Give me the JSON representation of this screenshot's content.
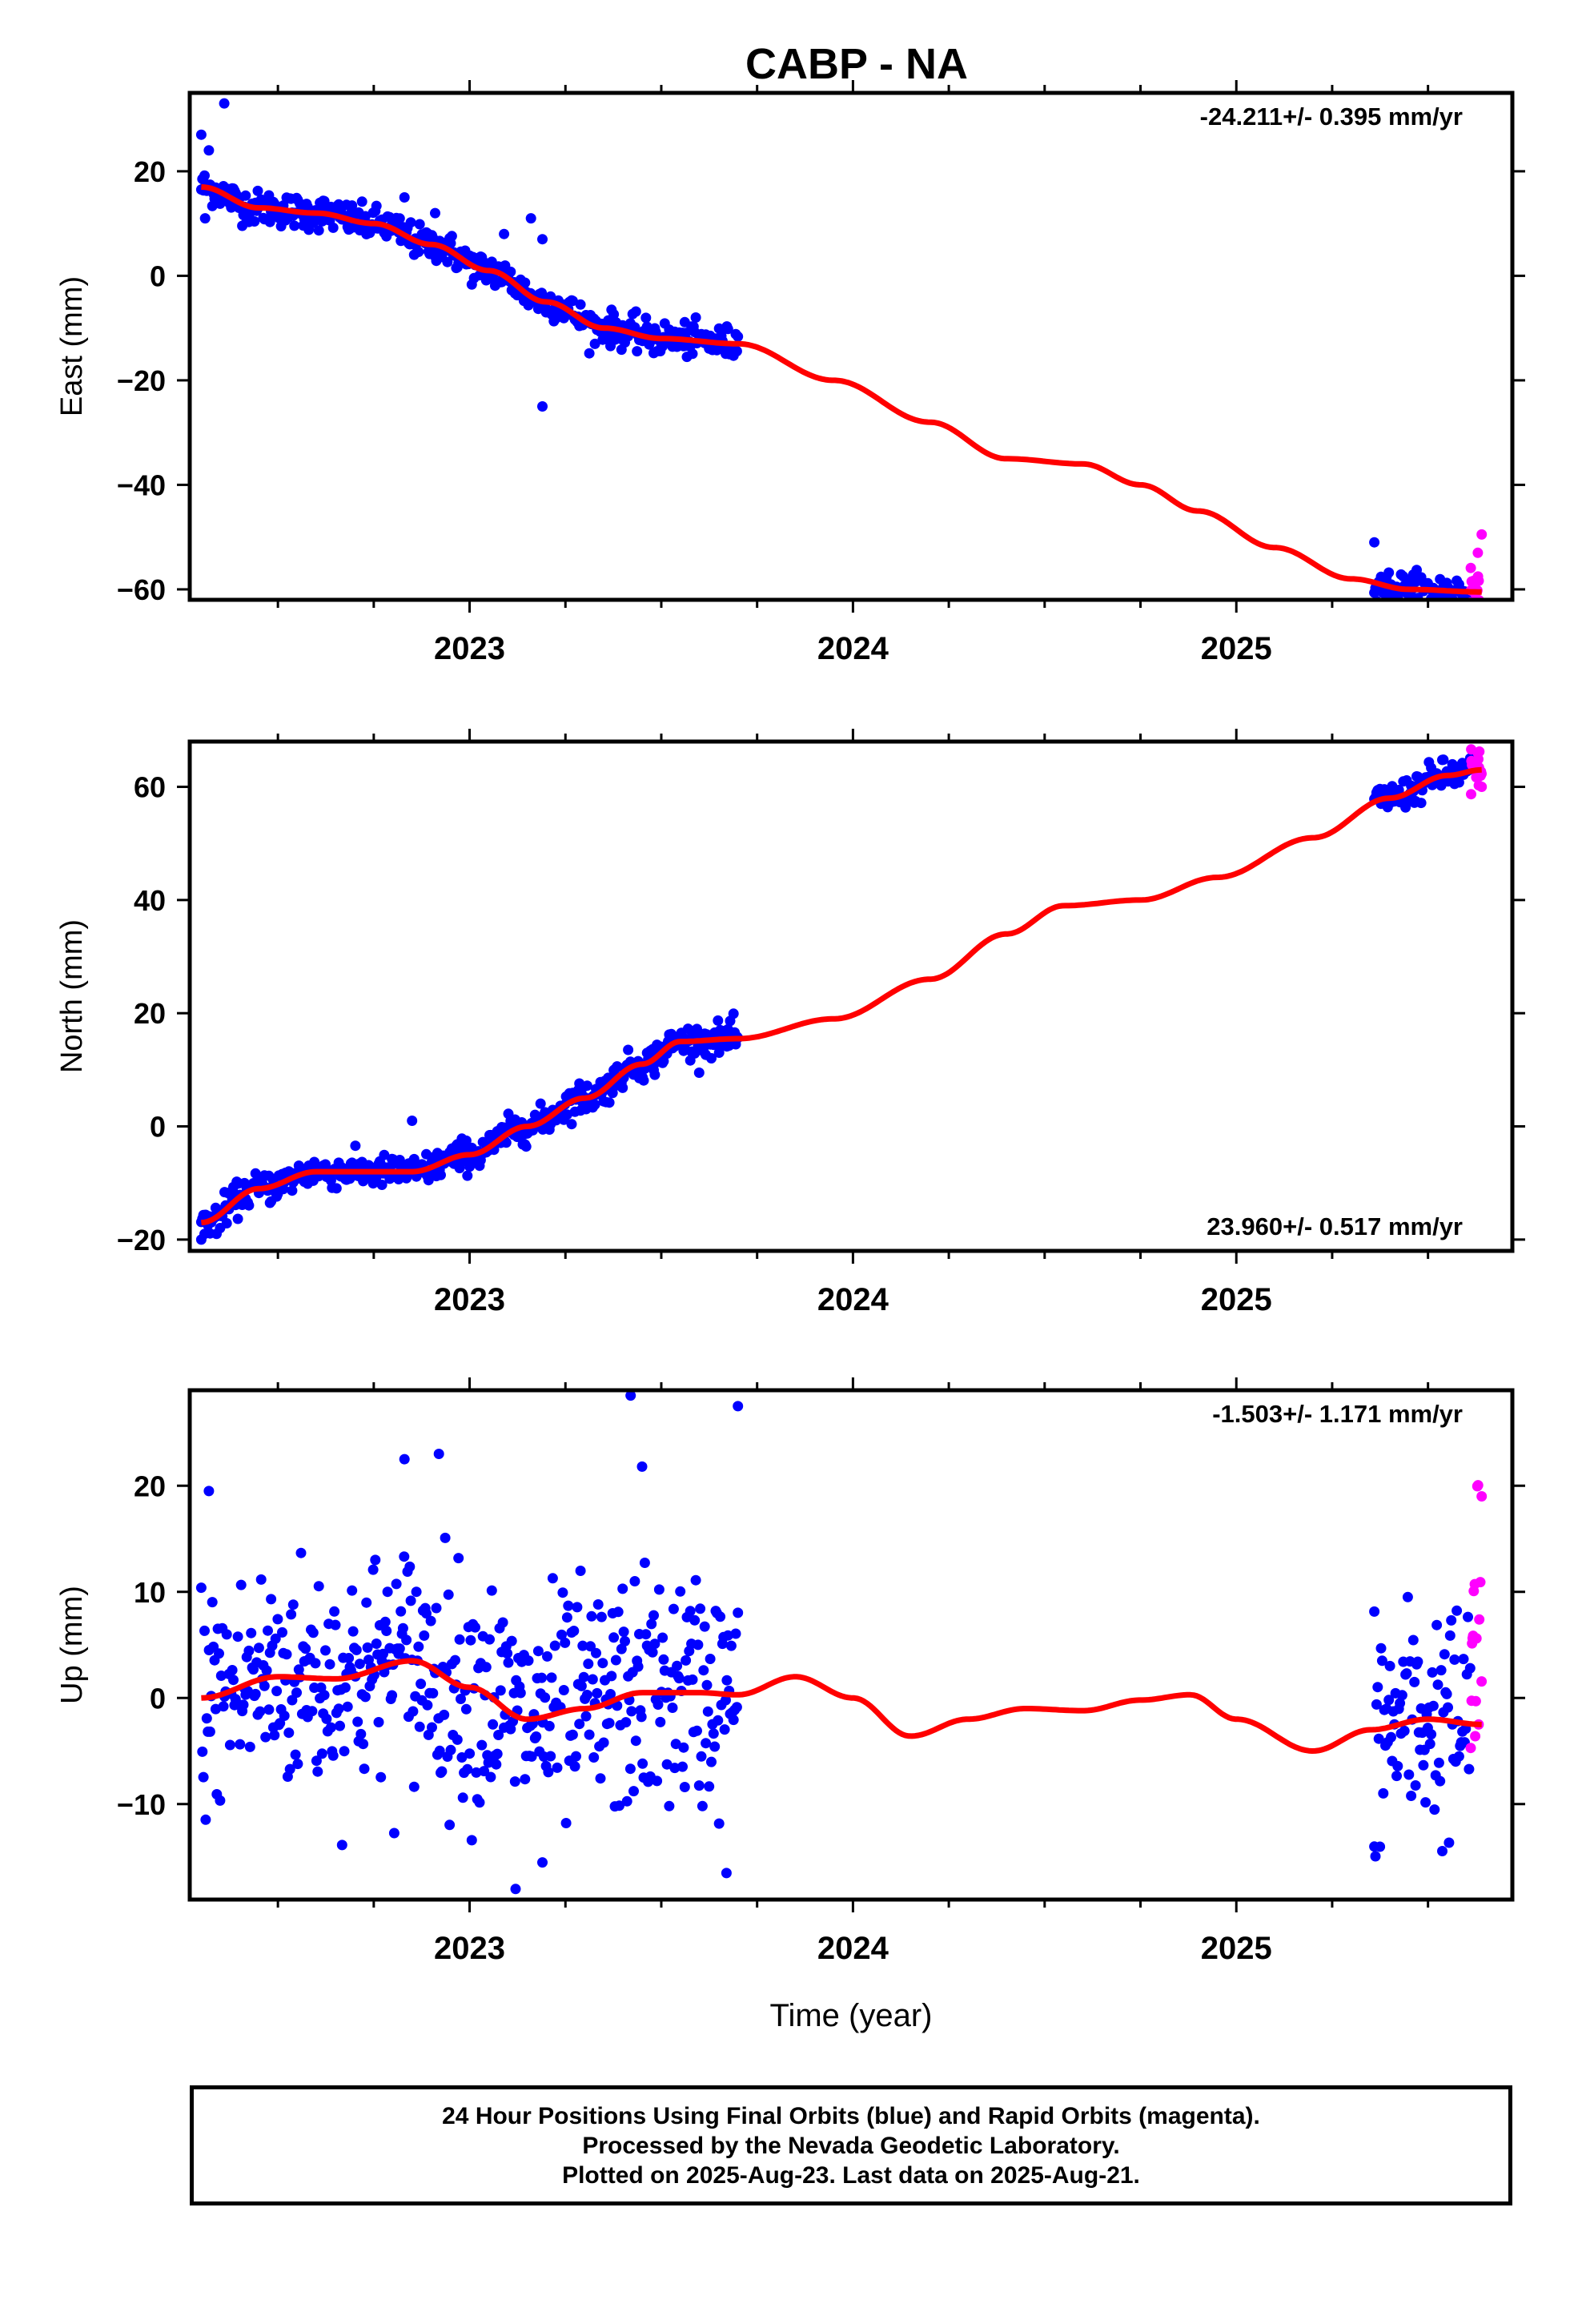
{
  "title": "CABP - NA",
  "footer": {
    "line1": "24 Hour Positions Using Final Orbits (blue) and Rapid Orbits (magenta).",
    "line2": "Processed by the Nevada Geodetic Laboratory.",
    "line3": "Plotted on 2025-Aug-23. Last data on 2025-Aug-21."
  },
  "colors": {
    "final": "#0000ff",
    "rapid": "#ff00ff",
    "model": "#ff0000",
    "axis": "#000000"
  },
  "chart_data": [
    {
      "type": "scatter",
      "component": "east",
      "ylabel": "East (mm)",
      "xlabel": "",
      "rate_label": "-24.211+/- 0.395 mm/yr",
      "rate_position": "top-right",
      "xlim": [
        2022.27,
        2025.72
      ],
      "ylim": [
        -62,
        35
      ],
      "yticks": [
        -60,
        -40,
        -20,
        0,
        20
      ],
      "xticks": [
        2023,
        2024,
        2025
      ],
      "grid": false,
      "final_segments": [
        {
          "x_start": 2022.3,
          "x_end": 2023.7
        },
        {
          "x_start": 2025.36,
          "x_end": 2025.61
        }
      ],
      "rapid_segment": {
        "x_start": 2025.61,
        "x_end": 2025.64
      },
      "noise_mm": 1.6,
      "outliers": [
        [
          2022.3,
          27
        ],
        [
          2022.32,
          24
        ],
        [
          2022.36,
          33
        ],
        [
          2022.31,
          11
        ],
        [
          2022.83,
          15
        ],
        [
          2022.91,
          12
        ],
        [
          2023.16,
          11
        ],
        [
          2023.19,
          -25
        ],
        [
          2023.19,
          7
        ],
        [
          2023.09,
          8
        ],
        [
          2025.36,
          -51
        ],
        [
          2025.64,
          -49.5
        ],
        [
          2025.63,
          -53
        ]
      ],
      "model": {
        "x": [
          2022.3,
          2022.45,
          2022.6,
          2022.75,
          2022.9,
          2023.05,
          2023.2,
          2023.35,
          2023.5,
          2023.7,
          2023.95,
          2024.2,
          2024.4,
          2024.6,
          2024.75,
          2024.9,
          2025.1,
          2025.3,
          2025.45,
          2025.64
        ],
        "y": [
          17,
          13,
          12,
          10,
          6,
          1,
          -5,
          -10,
          -12,
          -13,
          -20,
          -28,
          -35,
          -36,
          -40,
          -45,
          -52,
          -58,
          -60,
          -60.5
        ]
      }
    },
    {
      "type": "scatter",
      "component": "north",
      "ylabel": "North (mm)",
      "xlabel": "",
      "rate_label": "23.960+/- 0.517 mm/yr",
      "rate_position": "bottom-right",
      "xlim": [
        2022.27,
        2025.72
      ],
      "ylim": [
        -22,
        68
      ],
      "yticks": [
        -20,
        0,
        20,
        40,
        60
      ],
      "xticks": [
        2023,
        2024,
        2025
      ],
      "grid": false,
      "final_segments": [
        {
          "x_start": 2022.3,
          "x_end": 2023.7
        },
        {
          "x_start": 2025.36,
          "x_end": 2025.61
        }
      ],
      "rapid_segment": {
        "x_start": 2025.61,
        "x_end": 2025.64
      },
      "noise_mm": 1.4,
      "outliers": [
        [
          2022.85,
          1
        ],
        [
          2022.3,
          -20
        ],
        [
          2022.34,
          -19
        ],
        [
          2025.63,
          66
        ],
        [
          2025.64,
          60
        ]
      ],
      "model": {
        "x": [
          2022.3,
          2022.45,
          2022.6,
          2022.75,
          2022.85,
          2023.0,
          2023.15,
          2023.3,
          2023.45,
          2023.55,
          2023.7,
          2023.95,
          2024.2,
          2024.4,
          2024.55,
          2024.75,
          2024.95,
          2025.2,
          2025.4,
          2025.55,
          2025.64
        ],
        "y": [
          -17,
          -11,
          -8,
          -8,
          -8,
          -5,
          0,
          5,
          11,
          15,
          15.5,
          19,
          26,
          34,
          39,
          40,
          44,
          51,
          58,
          62,
          63
        ]
      }
    },
    {
      "type": "scatter",
      "component": "up",
      "ylabel": "Up (mm)",
      "xlabel": "Time (year)",
      "rate_label": "-1.503+/- 1.171 mm/yr",
      "rate_position": "top-right",
      "xlim": [
        2022.27,
        2025.72
      ],
      "ylim": [
        -19,
        29
      ],
      "yticks": [
        -10,
        0,
        10,
        20
      ],
      "xticks": [
        2023,
        2024,
        2025
      ],
      "grid": false,
      "final_segments": [
        {
          "x_start": 2022.3,
          "x_end": 2023.7
        },
        {
          "x_start": 2025.36,
          "x_end": 2025.61
        }
      ],
      "rapid_segment": {
        "x_start": 2025.61,
        "x_end": 2025.64
      },
      "noise_mm": 5.5,
      "outliers": [
        [
          2022.32,
          19.5
        ],
        [
          2022.83,
          22.5
        ],
        [
          2022.92,
          23
        ],
        [
          2023.42,
          28.5
        ],
        [
          2023.45,
          21.8
        ],
        [
          2023.7,
          27.5
        ],
        [
          2023.12,
          -18
        ],
        [
          2023.19,
          -15.5
        ],
        [
          2023.67,
          -16.5
        ],
        [
          2025.36,
          -14
        ],
        [
          2025.64,
          19
        ]
      ],
      "model": {
        "x": [
          2022.3,
          2022.5,
          2022.65,
          2022.85,
          2023.0,
          2023.15,
          2023.3,
          2023.45,
          2023.6,
          2023.7,
          2023.85,
          2024.0,
          2024.15,
          2024.3,
          2024.45,
          2024.6,
          2024.75,
          2024.88,
          2025.0,
          2025.2,
          2025.35,
          2025.5,
          2025.64
        ],
        "y": [
          0,
          2,
          1.8,
          3.5,
          1,
          -2,
          -1,
          0.5,
          0.5,
          0.3,
          2,
          0,
          -3.6,
          -2,
          -1,
          -1.2,
          -0.2,
          0.3,
          -2,
          -5,
          -3,
          -2,
          -2.5
        ]
      }
    }
  ]
}
